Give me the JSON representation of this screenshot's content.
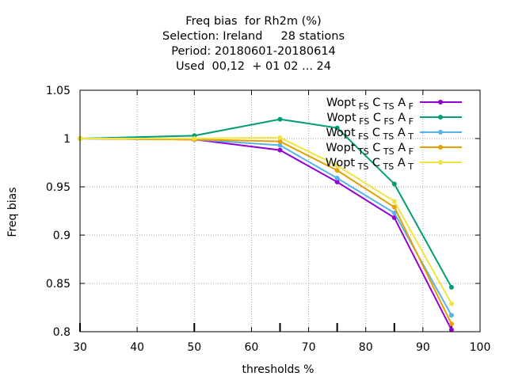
{
  "chart_data": {
    "type": "line",
    "title_lines": [
      "Freq bias  for Rh2m (%)",
      "Selection: Ireland     28 stations",
      "Period: 20180601-20180614",
      "Used  00,12  + 01 02 ... 24"
    ],
    "xlabel": "thresholds %",
    "ylabel": "Freq bias",
    "xlim": [
      30,
      100
    ],
    "ylim": [
      0.8,
      1.05
    ],
    "xticks": [
      30,
      40,
      50,
      60,
      70,
      80,
      90,
      100
    ],
    "xtick_labels": [
      "30",
      "40",
      "50",
      "60",
      "70",
      "80",
      "90",
      "100"
    ],
    "yticks": [
      0.8,
      0.85,
      0.9,
      0.95,
      1.0,
      1.05
    ],
    "ytick_labels": [
      "0.8",
      "0.85",
      "0.9",
      "0.95",
      "1",
      "1.05"
    ],
    "grid": true,
    "legend_position": "top-right",
    "x": [
      30,
      50,
      65,
      75,
      85,
      95
    ],
    "series": [
      {
        "name": "Wopt FS C TS A F",
        "label_parts": [
          [
            "Wopt",
            ""
          ],
          [
            "FS",
            "sub"
          ],
          [
            "C",
            ""
          ],
          [
            "TS",
            "sub"
          ],
          [
            "A",
            ""
          ],
          [
            "F",
            "sub"
          ]
        ],
        "color": "#9400d3",
        "values": [
          1.0,
          0.999,
          0.988,
          0.955,
          0.918,
          0.802
        ]
      },
      {
        "name": "Wopt FS C FS A F",
        "label_parts": [
          [
            "Wopt",
            ""
          ],
          [
            "FS",
            "sub"
          ],
          [
            "C",
            ""
          ],
          [
            "FS",
            "sub"
          ],
          [
            "A",
            ""
          ],
          [
            "F",
            "sub"
          ]
        ],
        "color": "#009e73",
        "values": [
          1.0,
          1.003,
          1.02,
          1.011,
          0.953,
          0.846
        ]
      },
      {
        "name": "Wopt FS C TS A T",
        "label_parts": [
          [
            "Wopt",
            ""
          ],
          [
            "FS",
            "sub"
          ],
          [
            "C",
            ""
          ],
          [
            "TS",
            "sub"
          ],
          [
            "A",
            ""
          ],
          [
            "T",
            "sub"
          ]
        ],
        "color": "#56b4e9",
        "values": [
          1.0,
          0.999,
          0.993,
          0.959,
          0.923,
          0.817
        ]
      },
      {
        "name": "Wopt TS C TS A F",
        "label_parts": [
          [
            "Wopt",
            ""
          ],
          [
            "TS",
            "sub"
          ],
          [
            "C",
            ""
          ],
          [
            "TS",
            "sub"
          ],
          [
            "A",
            ""
          ],
          [
            "F",
            "sub"
          ]
        ],
        "color": "#e69f00",
        "values": [
          1.0,
          0.999,
          0.997,
          0.967,
          0.929,
          0.808
        ]
      },
      {
        "name": "Wopt TS C TS A T",
        "label_parts": [
          [
            "Wopt",
            ""
          ],
          [
            "TS",
            "sub"
          ],
          [
            "C",
            ""
          ],
          [
            "TS",
            "sub"
          ],
          [
            "A",
            ""
          ],
          [
            "T",
            "sub"
          ]
        ],
        "color": "#f0e442",
        "values": [
          1.0,
          1.0,
          1.001,
          0.972,
          0.935,
          0.829
        ]
      }
    ]
  }
}
